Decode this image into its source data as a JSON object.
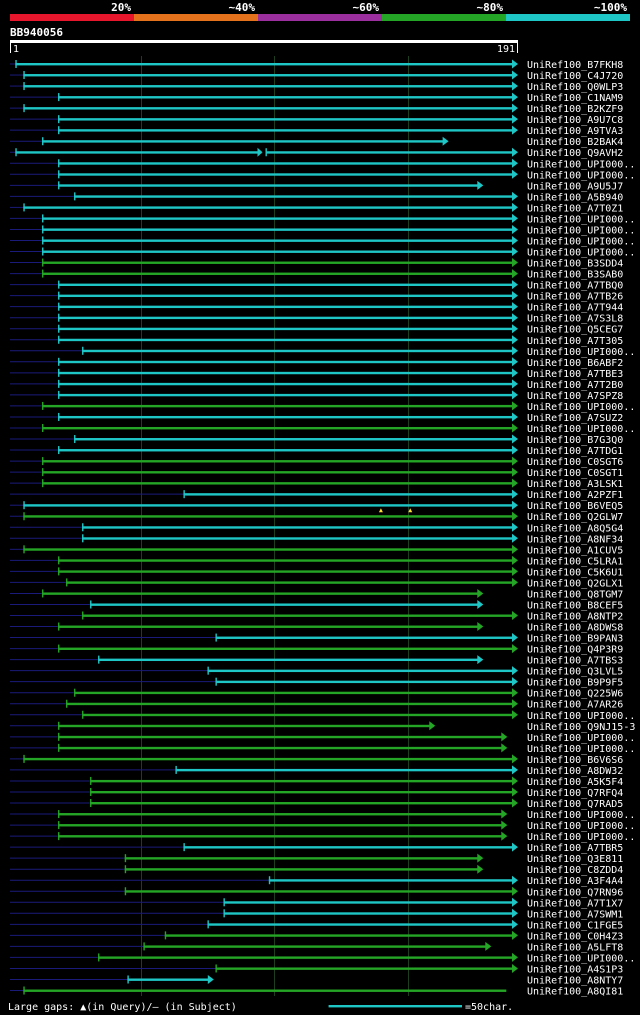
{
  "chart_data": {
    "type": "alignment-overview",
    "query": {
      "name": "BB940056",
      "start": 1,
      "end": 191
    },
    "identity_legend": [
      {
        "label": "20%",
        "color": "#e8162c"
      },
      {
        "label": "~40%",
        "color": "#e4711b"
      },
      {
        "label": "~60%",
        "color": "#9b2f9e"
      },
      {
        "label": "~80%",
        "color": "#25a525"
      },
      {
        "label": "~100%",
        "color": "#1fc6c6"
      }
    ],
    "colors": {
      "background": "#000000",
      "text": "#ffffff",
      "grid": "#1f3d1f",
      "lead": "#1a1a7a",
      "gap": "#ffdd33"
    },
    "grid_ticks": [
      50,
      100,
      150
    ],
    "footer": {
      "gaps_note": "Large gaps: ▲(in Query)/– (in Subject)",
      "scale_note": "=50char."
    },
    "hits": [
      {
        "label": "UniRef100_B7FKH8",
        "start": 3,
        "end": 191,
        "color": "cyan",
        "arrow": true
      },
      {
        "label": "UniRef100_C4J720",
        "start": 6,
        "end": 191,
        "color": "cyan",
        "arrow": true
      },
      {
        "label": "UniRef100_Q0WLP3",
        "start": 6,
        "end": 191,
        "color": "cyan",
        "arrow": true
      },
      {
        "label": "UniRef100_C1NAM9",
        "start": 19,
        "end": 191,
        "color": "cyan",
        "arrow": true
      },
      {
        "label": "UniRef100_B2KZF9",
        "start": 6,
        "end": 191,
        "color": "cyan",
        "arrow": true
      },
      {
        "label": "UniRef100_A9U7C8",
        "start": 19,
        "end": 191,
        "color": "cyan",
        "arrow": true
      },
      {
        "label": "UniRef100_A9TVA3",
        "start": 19,
        "end": 191,
        "color": "cyan",
        "arrow": true
      },
      {
        "label": "UniRef100_B2BAK4",
        "start": 13,
        "end": 165,
        "color": "cyan",
        "arrow": true
      },
      {
        "label": "UniRef100_Q9AVH2",
        "start": 3,
        "end": 191,
        "color": "cyan",
        "arrow": true,
        "breaks": [
          96
        ]
      },
      {
        "label": "UniRef100_UPI000..",
        "start": 19,
        "end": 191,
        "color": "cyan",
        "arrow": true
      },
      {
        "label": "UniRef100_UPI000..",
        "start": 19,
        "end": 191,
        "color": "cyan",
        "arrow": true
      },
      {
        "label": "UniRef100_A9U5J7",
        "start": 19,
        "end": 178,
        "color": "cyan",
        "arrow": true
      },
      {
        "label": "UniRef100_A5B940",
        "start": 25,
        "end": 191,
        "color": "cyan",
        "arrow": true
      },
      {
        "label": "UniRef100_A7T0Z1",
        "start": 6,
        "end": 191,
        "color": "cyan",
        "arrow": true
      },
      {
        "label": "UniRef100_UPI000..",
        "start": 13,
        "end": 191,
        "color": "cyan",
        "arrow": true
      },
      {
        "label": "UniRef100_UPI000..",
        "start": 13,
        "end": 191,
        "color": "cyan",
        "arrow": true
      },
      {
        "label": "UniRef100_UPI000..",
        "start": 13,
        "end": 191,
        "color": "cyan",
        "arrow": true
      },
      {
        "label": "UniRef100_UPI000..",
        "start": 13,
        "end": 191,
        "color": "cyan",
        "arrow": true
      },
      {
        "label": "UniRef100_B3SDD4",
        "start": 13,
        "end": 191,
        "color": "green",
        "arrow": true
      },
      {
        "label": "UniRef100_B3SAB0",
        "start": 13,
        "end": 191,
        "color": "green",
        "arrow": true
      },
      {
        "label": "UniRef100_A7TBQ0",
        "start": 19,
        "end": 191,
        "color": "cyan",
        "arrow": true
      },
      {
        "label": "UniRef100_A7TB26",
        "start": 19,
        "end": 191,
        "color": "cyan",
        "arrow": true
      },
      {
        "label": "UniRef100_A7T944",
        "start": 19,
        "end": 191,
        "color": "cyan",
        "arrow": true
      },
      {
        "label": "UniRef100_A7S3L8",
        "start": 19,
        "end": 191,
        "color": "cyan",
        "arrow": true
      },
      {
        "label": "UniRef100_Q5CEG7",
        "start": 19,
        "end": 191,
        "color": "cyan",
        "arrow": true
      },
      {
        "label": "UniRef100_A7T305",
        "start": 19,
        "end": 191,
        "color": "cyan",
        "arrow": true
      },
      {
        "label": "UniRef100_UPI000..",
        "start": 28,
        "end": 191,
        "color": "cyan",
        "arrow": true
      },
      {
        "label": "UniRef100_B6ABF2",
        "start": 19,
        "end": 191,
        "color": "cyan",
        "arrow": true
      },
      {
        "label": "UniRef100_A7TBE3",
        "start": 19,
        "end": 191,
        "color": "cyan",
        "arrow": true
      },
      {
        "label": "UniRef100_A7T2B0",
        "start": 19,
        "end": 191,
        "color": "cyan",
        "arrow": true
      },
      {
        "label": "UniRef100_A7SPZ8",
        "start": 19,
        "end": 191,
        "color": "cyan",
        "arrow": true
      },
      {
        "label": "UniRef100_UPI000..",
        "start": 13,
        "end": 191,
        "color": "green",
        "arrow": true
      },
      {
        "label": "UniRef100_A7SUZ2",
        "start": 19,
        "end": 191,
        "color": "cyan",
        "arrow": true
      },
      {
        "label": "UniRef100_UPI000..",
        "start": 13,
        "end": 191,
        "color": "green",
        "arrow": true
      },
      {
        "label": "UniRef100_B7G3Q0",
        "start": 25,
        "end": 191,
        "color": "cyan",
        "arrow": true
      },
      {
        "label": "UniRef100_A7TDG1",
        "start": 19,
        "end": 191,
        "color": "cyan",
        "arrow": true
      },
      {
        "label": "UniRef100_C0SGT6",
        "start": 13,
        "end": 191,
        "color": "green",
        "arrow": true
      },
      {
        "label": "UniRef100_C0SGT1",
        "start": 13,
        "end": 191,
        "color": "green",
        "arrow": true
      },
      {
        "label": "UniRef100_A3LSK1",
        "start": 13,
        "end": 191,
        "color": "green",
        "arrow": true
      },
      {
        "label": "UniRef100_A2PZF1",
        "start": 66,
        "end": 191,
        "color": "cyan",
        "arrow": true
      },
      {
        "label": "UniRef100_B6VEQ5",
        "start": 6,
        "end": 191,
        "color": "cyan",
        "arrow": true,
        "gap_marks": [
          140,
          151
        ]
      },
      {
        "label": "UniRef100_Q2GLW7",
        "start": 6,
        "end": 191,
        "color": "green",
        "arrow": true
      },
      {
        "label": "UniRef100_A8Q5G4",
        "start": 28,
        "end": 191,
        "color": "cyan",
        "arrow": true
      },
      {
        "label": "UniRef100_A8NF34",
        "start": 28,
        "end": 191,
        "color": "cyan",
        "arrow": true
      },
      {
        "label": "UniRef100_A1CUV5",
        "start": 6,
        "end": 191,
        "color": "green",
        "arrow": true
      },
      {
        "label": "UniRef100_C5LRA1",
        "start": 19,
        "end": 191,
        "color": "green",
        "arrow": true
      },
      {
        "label": "UniRef100_C5K6U1",
        "start": 19,
        "end": 191,
        "color": "green",
        "arrow": true
      },
      {
        "label": "UniRef100_Q2GLX1",
        "start": 22,
        "end": 191,
        "color": "green",
        "arrow": true
      },
      {
        "label": "UniRef100_Q8TGM7",
        "start": 13,
        "end": 178,
        "color": "green",
        "arrow": true
      },
      {
        "label": "UniRef100_B8CEF5",
        "start": 31,
        "end": 178,
        "color": "cyan",
        "arrow": true
      },
      {
        "label": "UniRef100_A8NTP2",
        "start": 28,
        "end": 191,
        "color": "green",
        "arrow": true
      },
      {
        "label": "UniRef100_A8DWS8",
        "start": 19,
        "end": 178,
        "color": "green",
        "arrow": true
      },
      {
        "label": "UniRef100_B9PAN3",
        "start": 78,
        "end": 191,
        "color": "cyan",
        "arrow": true
      },
      {
        "label": "UniRef100_Q4P3R9",
        "start": 19,
        "end": 191,
        "color": "green",
        "arrow": true
      },
      {
        "label": "UniRef100_A7TBS3",
        "start": 34,
        "end": 178,
        "color": "cyan",
        "arrow": true
      },
      {
        "label": "UniRef100_Q3LVL5",
        "start": 75,
        "end": 191,
        "color": "cyan",
        "arrow": true
      },
      {
        "label": "UniRef100_B9P9F5",
        "start": 78,
        "end": 191,
        "color": "cyan",
        "arrow": true
      },
      {
        "label": "UniRef100_Q225W6",
        "start": 25,
        "end": 191,
        "color": "green",
        "arrow": true
      },
      {
        "label": "UniRef100_A7AR26",
        "start": 22,
        "end": 191,
        "color": "green",
        "arrow": true
      },
      {
        "label": "UniRef100_UPI000..",
        "start": 28,
        "end": 191,
        "color": "green",
        "arrow": true
      },
      {
        "label": "UniRef100_Q9NJ15-3",
        "start": 19,
        "end": 160,
        "color": "green",
        "arrow": true
      },
      {
        "label": "UniRef100_UPI000..",
        "start": 19,
        "end": 187,
        "color": "green",
        "arrow": true
      },
      {
        "label": "UniRef100_UPI000..",
        "start": 19,
        "end": 187,
        "color": "green",
        "arrow": true
      },
      {
        "label": "UniRef100_B6V6S6",
        "start": 6,
        "end": 191,
        "color": "green",
        "arrow": true
      },
      {
        "label": "UniRef100_A8DW32",
        "start": 63,
        "end": 191,
        "color": "cyan",
        "arrow": true
      },
      {
        "label": "UniRef100_A5K5F4",
        "start": 31,
        "end": 191,
        "color": "green",
        "arrow": true
      },
      {
        "label": "UniRef100_Q7RFQ4",
        "start": 31,
        "end": 191,
        "color": "green",
        "arrow": true
      },
      {
        "label": "UniRef100_Q7RAD5",
        "start": 31,
        "end": 191,
        "color": "green",
        "arrow": true
      },
      {
        "label": "UniRef100_UPI000..",
        "start": 19,
        "end": 187,
        "color": "green",
        "arrow": true
      },
      {
        "label": "UniRef100_UPI000..",
        "start": 19,
        "end": 187,
        "color": "green",
        "arrow": true
      },
      {
        "label": "UniRef100_UPI000..",
        "start": 19,
        "end": 187,
        "color": "green",
        "arrow": true
      },
      {
        "label": "UniRef100_A7TBR5",
        "start": 66,
        "end": 191,
        "color": "cyan",
        "arrow": true
      },
      {
        "label": "UniRef100_Q3E811",
        "start": 44,
        "end": 178,
        "color": "green",
        "arrow": true
      },
      {
        "label": "UniRef100_C8ZDD4",
        "start": 44,
        "end": 178,
        "color": "green",
        "arrow": true
      },
      {
        "label": "UniRef100_A3F4A4",
        "start": 98,
        "end": 191,
        "color": "cyan",
        "arrow": true
      },
      {
        "label": "UniRef100_Q7RN96",
        "start": 44,
        "end": 191,
        "color": "green",
        "arrow": true
      },
      {
        "label": "UniRef100_A7T1X7",
        "start": 81,
        "end": 191,
        "color": "cyan",
        "arrow": true
      },
      {
        "label": "UniRef100_A7SWM1",
        "start": 81,
        "end": 191,
        "color": "cyan",
        "arrow": true
      },
      {
        "label": "UniRef100_C1FGE5",
        "start": 75,
        "end": 191,
        "color": "cyan",
        "arrow": true
      },
      {
        "label": "UniRef100_C0H4Z3",
        "start": 59,
        "end": 191,
        "color": "green",
        "arrow": true
      },
      {
        "label": "UniRef100_A5LFT8",
        "start": 51,
        "end": 181,
        "color": "green",
        "arrow": true
      },
      {
        "label": "UniRef100_UPI000..",
        "start": 34,
        "end": 191,
        "color": "green",
        "arrow": true
      },
      {
        "label": "UniRef100_A4S1P3",
        "start": 78,
        "end": 191,
        "color": "green",
        "arrow": true
      },
      {
        "label": "UniRef100_A8NTY7",
        "start": 45,
        "end": 77,
        "color": "cyan",
        "arrow": true
      },
      {
        "label": "UniRef100_A8QI81",
        "start": 6,
        "end": 187,
        "color": "green",
        "arrow": false
      }
    ]
  }
}
